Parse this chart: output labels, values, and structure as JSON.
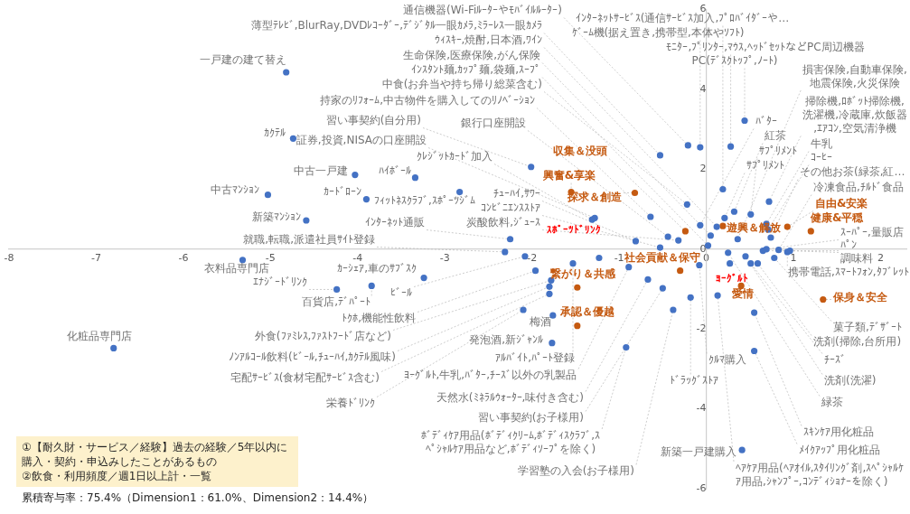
{
  "chart_data": {
    "type": "scatter",
    "xlim": [
      -8,
      2.3
    ],
    "ylim": [
      -6,
      6
    ],
    "xticks": [
      -8,
      -7,
      -6,
      -5,
      -4,
      -3,
      -2,
      -1,
      0,
      1,
      2
    ],
    "yticks": [
      -6,
      -4,
      -2,
      0,
      2,
      4,
      6
    ],
    "grid": false,
    "legend": false,
    "marker": "circle",
    "series": [
      {
        "color": "#4472c4",
        "x": [
          -0.21,
          -0.53,
          0.12,
          0.05,
          0.02,
          -0.22,
          -0.64,
          -0.44,
          -2.01,
          -1.28,
          -1.31,
          -0.81,
          -0.53,
          -0.32,
          -2.25,
          -2.31,
          0.19,
          -0.07,
          0.28,
          0.44,
          0.36,
          0.72,
          0.69,
          0.71,
          0.74,
          0.83,
          -0.07,
          0.32,
          0.51,
          0.21,
          0.69,
          0.65,
          0.96,
          0.93,
          0.78,
          0.59,
          0.51,
          0.45,
          0.25,
          0.55,
          0.55,
          0.13,
          0.41,
          -0.38,
          -0.92,
          -0.5,
          -0.67,
          -0.89,
          -1.53,
          -1.77,
          -1.76,
          -0.18,
          -0.08,
          -2.1,
          -1.8,
          -1.8,
          -1.78,
          -1.96,
          -2.08,
          -3.84,
          -4.24,
          -3.24,
          -6.8,
          -5.32,
          -4.59,
          -5.03,
          -4.74,
          -4.82,
          -4.03,
          -3.9,
          -3.34,
          -2.83,
          -1.23,
          0.27
        ],
        "values": [
          2.6,
          2.35,
          0.56,
          0.34,
          0.09,
          1.12,
          0.81,
          0.31,
          2.06,
          0.78,
          0.74,
          0.2,
          0.04,
          0.22,
          0.25,
          -0.07,
          1.5,
          2.55,
          2.57,
          3.22,
          0.25,
          1.19,
          0.63,
          0.49,
          0.29,
          -0.02,
          0.6,
          0.94,
          0.87,
          0.78,
          0.0,
          -0.04,
          -0.04,
          -0.07,
          -0.22,
          -0.36,
          -0.36,
          -0.18,
          -0.09,
          -1.59,
          -2.55,
          -1.16,
          -5.03,
          -1.52,
          -2.46,
          -0.98,
          -0.76,
          -0.45,
          -0.36,
          -2.35,
          -1.66,
          -1.21,
          -0.4,
          -1.52,
          -1.12,
          -0.94,
          -0.78,
          -0.54,
          -0.18,
          -0.92,
          -1.01,
          -0.72,
          -2.48,
          -0.27,
          0.72,
          1.36,
          2.77,
          4.43,
          1.86,
          1.25,
          1.79,
          1.43,
          -0.22,
          -0.36
        ],
        "value_labels": [
          "通信機器(Wi-Fiﾙｰﾀｰやﾓﾊﾞｲﾙﾙｰﾀｰ)",
          "薄型ﾃﾚﾋﾞ,BlurRay,DVDﾚｺｰﾀﾞｰ,ﾃﾞｼﾞﾀﾙ一眼ｶﾒﾗ,ﾐﾗｰﾚｽ一眼ｶﾒﾗ",
          "ｳｨｽｷｰ,焼酎,日本酒,ﾜｲﾝ",
          "生命保険,医療保険,がん保険",
          "ｲﾝｽﾀﾝﾄ麺,ｶｯﾌﾟ麺,袋麺,ｽｰﾌﾟ",
          "中食(お弁当や持ち帰り総菜含む)",
          "持家のﾘﾌｫｰﾑ,中古物件を購入してのﾘﾉﾍﾞｰｼｮﾝ",
          "銀行口座開設",
          "習い事契約(自分用)",
          "証券,投資,NISAの口座開設",
          "ｸﾚｼﾞｯﾄｶｰﾄﾞ加入",
          "ﾁｭｰﾊｲ,ｻﾜｰ",
          "ｺﾝﾋﾞﾆｴﾝｽｽﾄｱ",
          "炭酸飲料,ｼﾞｭｰｽ",
          "ｲﾝﾀｰﾈｯﾄ通販",
          "就職,転職,派遣社員ｻｲﾄ登録",
          "ｲﾝﾀｰﾈｯﾄｻｰﾋﾞｽ(通信ｻｰﾋﾞｽ加入,ﾌﾟﾛﾊﾞｲﾀﾞｰや…",
          "ｹﾞｰﾑ機(据え置き,携帯型,本体やｿﾌﾄ)",
          "ﾓﾆﾀｰ,ﾌﾟﾘﾝﾀｰ,ﾏｳｽ,ﾍｯﾄﾞｾｯﾄなどPC周辺機器",
          "PC(ﾃﾞｽｸﾄｯﾌﾟ,ﾉｰﾄ)",
          "損害保険,自動車保険,地震保険,火災保険",
          "掃除機,ﾛﾎﾞｯﾄ掃除機,洗濯機,冷蔵庫,炊飯器,ｴｱｺﾝ,空気清浄機",
          "牛乳",
          "ｺｰﾋｰ",
          "その他お茶(緑茶,紅…",
          "冷凍食品,ﾁﾙﾄﾞ食品",
          "ﾊﾞﾀｰ",
          "紅茶",
          "ｻﾌﾟﾘﾒﾝﾄ",
          "ｻﾌﾟﾘﾒﾝﾄ",
          "ｽｰﾊﾟｰ,量販店",
          "ﾊﾟﾝ",
          "調味料",
          "携帯電話,ｽﾏｰﾄﾌｫﾝ,ﾀﾌﾞﾚｯﾄ",
          "菓子類,ﾃﾞｻﾞｰﾄ",
          "洗剤(掃除,台所用)",
          "ﾁｰｽﾞ",
          "洗剤(洗濯)",
          "緑茶",
          "ｽｷﾝｹｱ用化粧品",
          "ﾒｲｸｱｯﾌﾟ用化粧品",
          "ﾍｱｹｱ用品(ﾍｱｵｲﾙ,ｽﾀｲﾘﾝｸﾞ剤,ｽﾍﾟｼｬﾙｹｱ用品,ｼｬﾝﾌﾟｰ,ｺﾝﾃﾞｨｼｮﾅｰを除く)",
          "新築一戸建購入",
          "学習塾の入会(お子様用)",
          "ﾎﾞﾃﾞｨｹｱ用品(ﾎﾞﾃﾞｨｸﾘｰﾑ,ﾎﾞﾃﾞｨｽｸﾗﾌﾞ,ｽﾍﾟｼｬﾙｹｱ用品など,ﾎﾞﾃﾞｨｿｰﾌﾟを除く)",
          "習い事契約(お子様用)",
          "天然水(ﾐﾈﾗﾙｳｫｰﾀｰ,味付き含む)",
          "ﾖｰｸﾞﾙﾄ,牛乳,ﾊﾞﾀｰ,ﾁｰｽﾞ以外の乳製品",
          "ｱﾙﾊﾞｲﾄ,ﾊﾟｰﾄ登録",
          "発泡酒,新ｼﾞｬﾝﾙ",
          "梅酒",
          "ﾄﾞﾗｯｸﾞｽﾄｱ",
          "ｸﾙﾏ購入",
          "栄養ﾄﾞﾘﾝｸ",
          "宅配ｻｰﾋﾞｽ(食材宅配ｻｰﾋﾞｽ含む)",
          "ﾉﾝｱﾙｺｰﾙ飲料(ﾋﾞｰﾙ,ﾁｭｰﾊｲ,ｶｸﾃﾙ風味)",
          "外食(ﾌｧﾐﾚｽ,ﾌｧｽﾄﾌｰﾄﾞ店など)",
          "ﾄｸﾎ,機能性飲料",
          "ﾋﾞｰﾙ",
          "百貨店,ﾃﾞﾊﾟｰﾄ",
          "ｴﾅｼﾞｰﾄﾞﾘﾝｸ",
          "ｶｰｼｪｱ,車のｻﾌﾞｽｸ",
          "化粧品専門店",
          "衣料品専門店",
          "新築ﾏﾝｼｮﾝ",
          "中古ﾏﾝｼｮﾝ",
          "ｶｸﾃﾙ",
          "一戸建の建て替え",
          "中古一戸建",
          "ｶｰﾄﾞﾛｰﾝ",
          "ﾊｲﾎﾞｰﾙ",
          "ﾌｨｯﾄﾈｽｸﾗﾌﾞ,ｽﾎﾟｰﾂｼﾞﾑ",
          null,
          null
        ]
      },
      {
        "color": "#c55a11",
        "x": [
          -0.24,
          -1.55,
          -0.82,
          0.19,
          0.93,
          1.2,
          -1.48,
          -1.48,
          -0.3,
          0.4,
          1.34
        ],
        "values": [
          0.45,
          1.43,
          1.41,
          0.58,
          0.56,
          0.45,
          -0.96,
          -1.92,
          -0.54,
          -0.92,
          -1.26
        ],
        "value_labels": [
          "収集＆没頭",
          "興奮&享楽",
          "探求＆創造",
          "遊興＆解放",
          "自由&安楽",
          "健康&平穏",
          "繋がり＆共感",
          "承認＆優越",
          "社会貢献＆保守",
          "愛情",
          "保身＆安全"
        ]
      }
    ],
    "annotations": [
      {
        "text": "ｽﾎﾟｰﾂﾄﾞﾘﾝｸ",
        "x": -1.23,
        "y": -0.22
      },
      {
        "text": "ﾖｰｸﾞﾙﾄ",
        "x": 0.27,
        "y": -0.36
      },
      "①【耐久財・サービス／経験】過去の経験／5年以内に購入・契約・申込みしたことがあるもの",
      "②飲食・利用頻度／週1日以上計・一覧",
      "累積寄与率：75.4%（Dimension1：61.0%、Dimension2：14.4%）"
    ]
  }
}
